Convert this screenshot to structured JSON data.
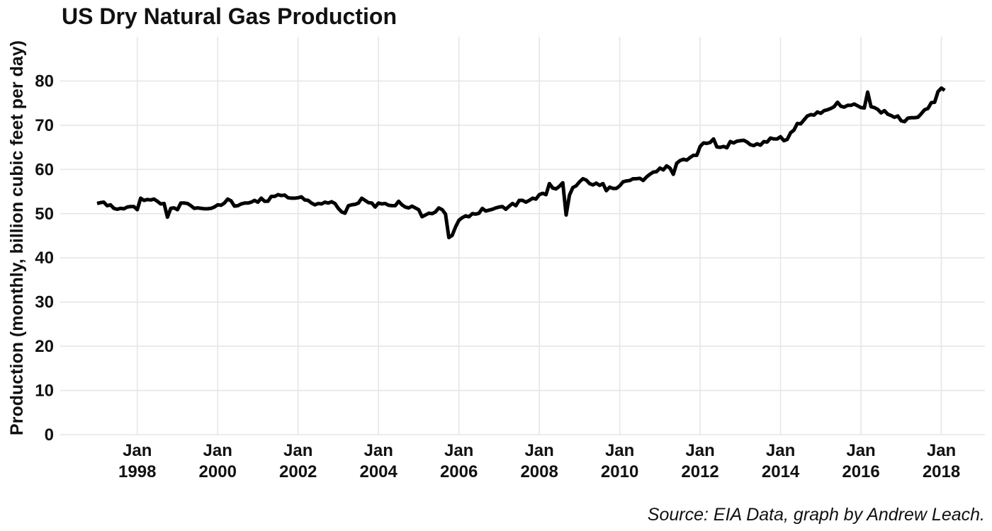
{
  "chart_data": {
    "type": "line",
    "title": "US Dry Natural Gas Production",
    "ylabel": "Production (monthly, billion cubic feet per day)",
    "caption": "Source: EIA Data, graph by Andrew Leach.",
    "color": "#000000",
    "grid": true,
    "xlim": [
      "1996-02",
      "2019-02"
    ],
    "xticks": [
      {
        "value": "1998-01",
        "label": "Jan 1998"
      },
      {
        "value": "2000-01",
        "label": "Jan 2000"
      },
      {
        "value": "2002-01",
        "label": "Jan 2002"
      },
      {
        "value": "2004-01",
        "label": "Jan 2004"
      },
      {
        "value": "2006-01",
        "label": "Jan 2006"
      },
      {
        "value": "2008-01",
        "label": "Jan 2008"
      },
      {
        "value": "2010-01",
        "label": "Jan 2010"
      },
      {
        "value": "2012-01",
        "label": "Jan 2012"
      },
      {
        "value": "2014-01",
        "label": "Jan 2014"
      },
      {
        "value": "2016-01",
        "label": "Jan 2016"
      },
      {
        "value": "2018-01",
        "label": "Jan 2018"
      }
    ],
    "ylim": [
      0,
      90
    ],
    "yticks": [
      0,
      10,
      20,
      30,
      40,
      50,
      60,
      70,
      80
    ],
    "x": [
      "1997-01",
      "1997-02",
      "1997-03",
      "1997-04",
      "1997-05",
      "1997-06",
      "1997-07",
      "1997-08",
      "1997-09",
      "1997-10",
      "1997-11",
      "1997-12",
      "1998-01",
      "1998-02",
      "1998-03",
      "1998-04",
      "1998-05",
      "1998-06",
      "1998-07",
      "1998-08",
      "1998-09",
      "1998-10",
      "1998-11",
      "1998-12",
      "1999-01",
      "1999-02",
      "1999-03",
      "1999-04",
      "1999-05",
      "1999-06",
      "1999-07",
      "1999-08",
      "1999-09",
      "1999-10",
      "1999-11",
      "1999-12",
      "2000-01",
      "2000-02",
      "2000-03",
      "2000-04",
      "2000-05",
      "2000-06",
      "2000-07",
      "2000-08",
      "2000-09",
      "2000-10",
      "2000-11",
      "2000-12",
      "2001-01",
      "2001-02",
      "2001-03",
      "2001-04",
      "2001-05",
      "2001-06",
      "2001-07",
      "2001-08",
      "2001-09",
      "2001-10",
      "2001-11",
      "2001-12",
      "2002-01",
      "2002-02",
      "2002-03",
      "2002-04",
      "2002-05",
      "2002-06",
      "2002-07",
      "2002-08",
      "2002-09",
      "2002-10",
      "2002-11",
      "2002-12",
      "2003-01",
      "2003-02",
      "2003-03",
      "2003-04",
      "2003-05",
      "2003-06",
      "2003-07",
      "2003-08",
      "2003-09",
      "2003-10",
      "2003-11",
      "2003-12",
      "2004-01",
      "2004-02",
      "2004-03",
      "2004-04",
      "2004-05",
      "2004-06",
      "2004-07",
      "2004-08",
      "2004-09",
      "2004-10",
      "2004-11",
      "2004-12",
      "2005-01",
      "2005-02",
      "2005-03",
      "2005-04",
      "2005-05",
      "2005-06",
      "2005-07",
      "2005-08",
      "2005-09",
      "2005-10",
      "2005-11",
      "2005-12",
      "2006-01",
      "2006-02",
      "2006-03",
      "2006-04",
      "2006-05",
      "2006-06",
      "2006-07",
      "2006-08",
      "2006-09",
      "2006-10",
      "2006-11",
      "2006-12",
      "2007-01",
      "2007-02",
      "2007-03",
      "2007-04",
      "2007-05",
      "2007-06",
      "2007-07",
      "2007-08",
      "2007-09",
      "2007-10",
      "2007-11",
      "2007-12",
      "2008-01",
      "2008-02",
      "2008-03",
      "2008-04",
      "2008-05",
      "2008-06",
      "2008-07",
      "2008-08",
      "2008-09",
      "2008-10",
      "2008-11",
      "2008-12",
      "2009-01",
      "2009-02",
      "2009-03",
      "2009-04",
      "2009-05",
      "2009-06",
      "2009-07",
      "2009-08",
      "2009-09",
      "2009-10",
      "2009-11",
      "2009-12",
      "2010-01",
      "2010-02",
      "2010-03",
      "2010-04",
      "2010-05",
      "2010-06",
      "2010-07",
      "2010-08",
      "2010-09",
      "2010-10",
      "2010-11",
      "2010-12",
      "2011-01",
      "2011-02",
      "2011-03",
      "2011-04",
      "2011-05",
      "2011-06",
      "2011-07",
      "2011-08",
      "2011-09",
      "2011-10",
      "2011-11",
      "2011-12",
      "2012-01",
      "2012-02",
      "2012-03",
      "2012-04",
      "2012-05",
      "2012-06",
      "2012-07",
      "2012-08",
      "2012-09",
      "2012-10",
      "2012-11",
      "2012-12",
      "2013-01",
      "2013-02",
      "2013-03",
      "2013-04",
      "2013-05",
      "2013-06",
      "2013-07",
      "2013-08",
      "2013-09",
      "2013-10",
      "2013-11",
      "2013-12",
      "2014-01",
      "2014-02",
      "2014-03",
      "2014-04",
      "2014-05",
      "2014-06",
      "2014-07",
      "2014-08",
      "2014-09",
      "2014-10",
      "2014-11",
      "2014-12",
      "2015-01",
      "2015-02",
      "2015-03",
      "2015-04",
      "2015-05",
      "2015-06",
      "2015-07",
      "2015-08",
      "2015-09",
      "2015-10",
      "2015-11",
      "2015-12",
      "2016-01",
      "2016-02",
      "2016-03",
      "2016-04",
      "2016-05",
      "2016-06",
      "2016-07",
      "2016-08",
      "2016-09",
      "2016-10",
      "2016-11",
      "2016-12",
      "2017-01",
      "2017-02",
      "2017-03",
      "2017-04",
      "2017-05",
      "2017-06",
      "2017-07",
      "2017-08",
      "2017-09",
      "2017-10",
      "2017-11",
      "2017-12",
      "2018-01",
      "2018-02"
    ],
    "values": [
      52.3,
      52.5,
      52.6,
      51.8,
      52.0,
      51.2,
      51.0,
      51.2,
      51.1,
      51.5,
      51.6,
      51.6,
      50.9,
      53.5,
      53.0,
      53.2,
      53.1,
      53.3,
      52.8,
      52.2,
      52.3,
      49.2,
      51.2,
      51.3,
      50.9,
      52.4,
      52.4,
      52.3,
      51.8,
      51.2,
      51.3,
      51.2,
      51.1,
      51.1,
      51.2,
      51.5,
      52.0,
      51.9,
      52.4,
      53.3,
      52.9,
      51.7,
      51.8,
      52.2,
      52.4,
      52.4,
      52.6,
      53.0,
      52.6,
      53.5,
      52.8,
      52.8,
      53.9,
      53.9,
      54.3,
      54.1,
      54.2,
      53.6,
      53.5,
      53.5,
      53.6,
      53.8,
      53.1,
      53.0,
      52.4,
      52.0,
      52.3,
      52.2,
      52.6,
      52.4,
      52.7,
      52.3,
      51.2,
      50.4,
      50.1,
      51.8,
      52.0,
      52.1,
      52.4,
      53.5,
      53.0,
      52.5,
      52.4,
      51.5,
      52.4,
      52.2,
      52.3,
      51.9,
      51.8,
      51.8,
      52.8,
      52.0,
      51.5,
      51.3,
      51.7,
      51.3,
      50.9,
      49.3,
      49.7,
      50.1,
      50.0,
      50.4,
      51.3,
      50.9,
      49.9,
      44.6,
      45.1,
      47.0,
      48.5,
      49.1,
      49.5,
      49.3,
      50.0,
      49.9,
      50.1,
      51.2,
      50.6,
      50.8,
      51.0,
      51.3,
      51.5,
      51.6,
      51.0,
      51.7,
      52.3,
      51.8,
      53.0,
      53.0,
      52.6,
      53.0,
      53.5,
      53.3,
      54.3,
      54.6,
      54.3,
      56.8,
      55.8,
      55.6,
      56.2,
      57.0,
      49.7,
      54.2,
      55.9,
      56.3,
      57.2,
      57.9,
      57.6,
      56.8,
      56.5,
      56.9,
      56.4,
      56.8,
      55.2,
      56.0,
      55.7,
      55.7,
      56.3,
      57.2,
      57.4,
      57.5,
      57.9,
      57.9,
      58.0,
      57.5,
      58.3,
      58.9,
      59.4,
      59.5,
      60.3,
      59.9,
      60.8,
      60.3,
      58.9,
      61.4,
      62.0,
      62.3,
      62.1,
      62.7,
      63.2,
      63.2,
      65.2,
      66.0,
      65.9,
      66.1,
      66.9,
      65.1,
      65.0,
      65.2,
      64.9,
      66.3,
      66.0,
      66.4,
      66.5,
      66.6,
      66.2,
      65.6,
      65.4,
      65.8,
      65.5,
      66.3,
      66.2,
      67.1,
      66.9,
      66.9,
      67.4,
      66.5,
      66.8,
      68.3,
      68.9,
      70.4,
      70.3,
      71.2,
      72.1,
      72.4,
      72.3,
      73.0,
      72.7,
      73.3,
      73.5,
      73.8,
      74.2,
      75.2,
      74.3,
      74.1,
      74.5,
      74.5,
      74.8,
      74.4,
      74.0,
      73.9,
      77.5,
      74.2,
      74.0,
      73.6,
      72.8,
      73.3,
      72.5,
      72.2,
      71.8,
      72.1,
      71.0,
      70.8,
      71.6,
      71.7,
      71.7,
      71.8,
      72.6,
      73.5,
      73.8,
      75.1,
      75.2,
      77.6,
      78.4,
      77.9
    ]
  }
}
